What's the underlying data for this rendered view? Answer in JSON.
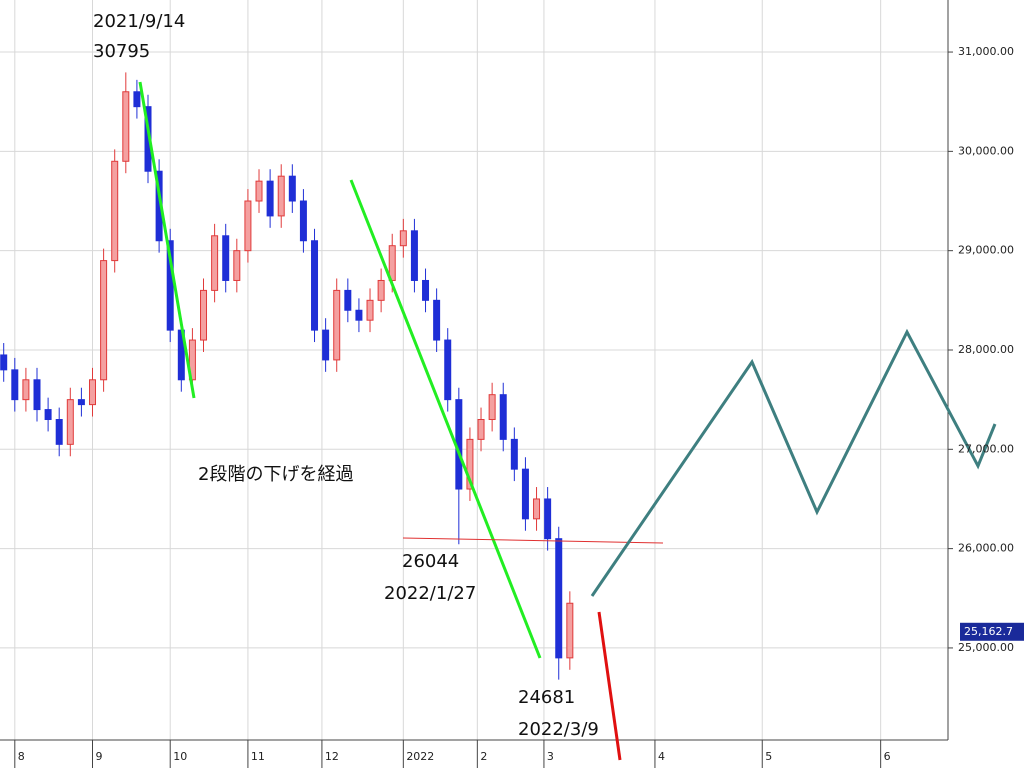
{
  "chart_data": {
    "type": "candlestick",
    "xlim": [
      0,
      256.2
    ],
    "ylim": [
      24073,
      31524
    ],
    "xticks": [
      {
        "value": 4,
        "label": "8"
      },
      {
        "value": 25,
        "label": "9"
      },
      {
        "value": 46,
        "label": "10"
      },
      {
        "value": 67,
        "label": "11"
      },
      {
        "value": 87,
        "label": "12"
      },
      {
        "value": 109,
        "label": "2022"
      },
      {
        "value": 129,
        "label": "2"
      },
      {
        "value": 147,
        "label": "3"
      },
      {
        "value": 177,
        "label": "4"
      },
      {
        "value": 206,
        "label": "5"
      },
      {
        "value": 238,
        "label": "6"
      }
    ],
    "yticks": [
      {
        "value": 25000,
        "label": "25,000.00"
      },
      {
        "value": 26000,
        "label": "26,000.00"
      },
      {
        "value": 27000,
        "label": "27,000.00"
      },
      {
        "value": 28000,
        "label": "28,000.00"
      },
      {
        "value": 29000,
        "label": "29,000.00"
      },
      {
        "value": 30000,
        "label": "30,000.00"
      },
      {
        "value": 31000,
        "label": "31,000.00"
      }
    ],
    "grid": true,
    "up_color": "#e03a3a",
    "down_color": "#1f2fd6",
    "x": [
      1,
      4,
      7,
      10,
      13,
      16,
      19,
      22,
      25,
      28,
      31,
      34,
      37,
      40,
      43,
      46,
      49,
      52,
      55,
      58,
      61,
      64,
      67,
      70,
      73,
      76,
      79,
      82,
      85,
      88,
      91,
      94,
      97,
      100,
      103,
      106,
      109,
      112,
      115,
      118,
      121,
      124,
      127,
      130,
      133,
      136,
      139,
      142,
      145,
      148,
      151,
      154
    ],
    "open": [
      27950,
      27800,
      27500,
      27700,
      27400,
      27300,
      27050,
      27500,
      27450,
      27700,
      28900,
      29900,
      30600,
      30450,
      29800,
      29100,
      28200,
      27700,
      28100,
      28600,
      29150,
      28700,
      29000,
      29500,
      29700,
      29350,
      29750,
      29500,
      29100,
      28200,
      27900,
      28600,
      28400,
      28300,
      28500,
      28700,
      29050,
      29200,
      28700,
      28500,
      28100,
      27500,
      26600,
      27100,
      27300,
      27550,
      27100,
      26800,
      26300,
      26500,
      26100,
      24900
    ],
    "high": [
      28070,
      27920,
      27820,
      27820,
      27520,
      27420,
      27620,
      27620,
      27820,
      29020,
      30020,
      30795,
      30720,
      30570,
      29920,
      29220,
      28320,
      28220,
      28720,
      29270,
      29270,
      29120,
      29620,
      29820,
      29820,
      29870,
      29870,
      29620,
      29220,
      28320,
      28720,
      28720,
      28520,
      28620,
      28820,
      29170,
      29320,
      29320,
      28820,
      28620,
      28220,
      27620,
      27220,
      27420,
      27670,
      27670,
      27220,
      26920,
      26620,
      26620,
      26220,
      25570
    ],
    "low": [
      27680,
      27380,
      27380,
      27280,
      27180,
      26930,
      26930,
      27330,
      27330,
      27580,
      28780,
      29780,
      30330,
      29680,
      28980,
      28080,
      27580,
      27580,
      27980,
      28480,
      28580,
      28580,
      28880,
      29380,
      29230,
      29230,
      29380,
      28980,
      28080,
      27780,
      27780,
      28280,
      28180,
      28180,
      28380,
      28580,
      28930,
      28580,
      28380,
      27980,
      27380,
      26044,
      26480,
      26980,
      27180,
      26980,
      26680,
      26180,
      26180,
      25980,
      24681,
      24780
    ],
    "close": [
      27800,
      27500,
      27700,
      27400,
      27300,
      27050,
      27500,
      27450,
      27700,
      28900,
      29900,
      30600,
      30450,
      29800,
      29100,
      28200,
      27700,
      28100,
      28600,
      29150,
      28700,
      29000,
      29500,
      29700,
      29350,
      29750,
      29500,
      29100,
      28200,
      27900,
      28600,
      28400,
      28300,
      28500,
      28700,
      29050,
      29200,
      28700,
      28500,
      28100,
      27500,
      26600,
      27100,
      27300,
      27550,
      27100,
      26800,
      26300,
      26500,
      26100,
      24900,
      25450
    ],
    "last_price": {
      "value": 25162.7,
      "label": "25,162.7"
    },
    "annotations": {
      "peak_date": "2021/9/14",
      "peak_value": "30795",
      "note": "2段階の下げを経過",
      "mid_value": "26044",
      "mid_date": "2022/1/27",
      "low_value": "24681",
      "low_date": "2022/3/9"
    }
  }
}
